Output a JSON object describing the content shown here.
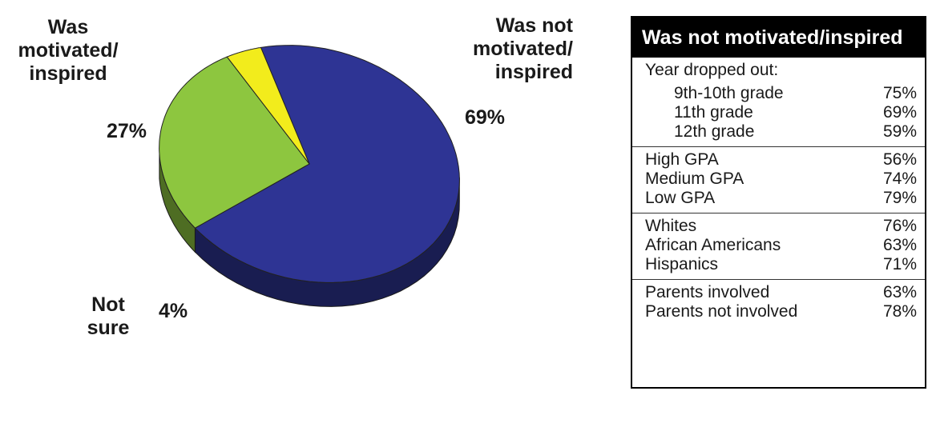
{
  "chart_data": {
    "type": "pie",
    "slices": [
      {
        "label": "Was not motivated/ inspired",
        "value": 69,
        "color": "#2e3494"
      },
      {
        "label": "Was motivated/ inspired",
        "value": 27,
        "color": "#8dc63f"
      },
      {
        "label": "Not sure",
        "value": 4,
        "color": "#f2ec1c"
      }
    ],
    "labels": {
      "motivated": [
        "Was",
        "motivated/",
        "inspired"
      ],
      "not_motivated": [
        "Was not",
        "motivated/",
        "inspired"
      ],
      "not_sure": [
        "Not",
        "sure"
      ]
    },
    "percent_labels": {
      "motivated": "27%",
      "not_motivated": "69%",
      "not_sure": "4%"
    },
    "view": "3d-tilted"
  },
  "table": {
    "title": "Was not motivated/inspired",
    "groups": [
      {
        "heading": "Year dropped out:",
        "rows": [
          {
            "label": "9th-10th grade",
            "value": "75%",
            "indent": true
          },
          {
            "label": "11th grade",
            "value": "69%",
            "indent": true
          },
          {
            "label": "12th grade",
            "value": "59%",
            "indent": true
          }
        ]
      },
      {
        "heading": "",
        "rows": [
          {
            "label": "High GPA",
            "value": "56%",
            "indent": false
          },
          {
            "label": "Medium GPA",
            "value": "74%",
            "indent": false
          },
          {
            "label": "Low GPA",
            "value": "79%",
            "indent": false
          }
        ]
      },
      {
        "heading": "",
        "rows": [
          {
            "label": "Whites",
            "value": "76%",
            "indent": false
          },
          {
            "label": "African Americans",
            "value": "63%",
            "indent": false
          },
          {
            "label": "Hispanics",
            "value": "71%",
            "indent": false
          }
        ]
      },
      {
        "heading": "",
        "rows": [
          {
            "label": "Parents involved",
            "value": "63%",
            "indent": false
          },
          {
            "label": "Parents not involved",
            "value": "78%",
            "indent": false
          }
        ]
      }
    ]
  }
}
